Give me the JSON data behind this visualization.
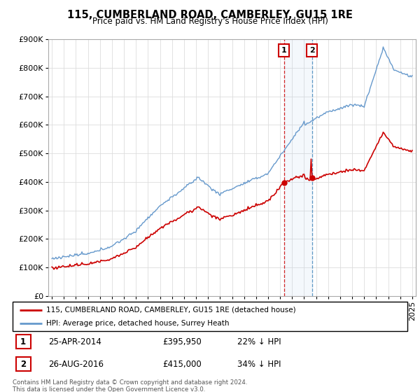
{
  "title": "115, CUMBERLAND ROAD, CAMBERLEY, GU15 1RE",
  "subtitle": "Price paid vs. HM Land Registry's House Price Index (HPI)",
  "legend_line1": "115, CUMBERLAND ROAD, CAMBERLEY, GU15 1RE (detached house)",
  "legend_line2": "HPI: Average price, detached house, Surrey Heath",
  "footer": "Contains HM Land Registry data © Crown copyright and database right 2024.\nThis data is licensed under the Open Government Licence v3.0.",
  "transactions": [
    {
      "num": 1,
      "date": "25-APR-2014",
      "price": "£395,950",
      "hpi": "22% ↓ HPI"
    },
    {
      "num": 2,
      "date": "26-AUG-2016",
      "price": "£415,000",
      "hpi": "34% ↓ HPI"
    }
  ],
  "sale1_year": 2014.32,
  "sale1_price": 395950,
  "sale2_year": 2016.65,
  "sale2_price": 415000,
  "red_color": "#cc0000",
  "blue_color": "#6699cc",
  "ylim": [
    0,
    900000
  ],
  "yticks": [
    0,
    100000,
    200000,
    300000,
    400000,
    500000,
    600000,
    700000,
    800000,
    900000
  ],
  "xstart": 1995,
  "xend": 2025
}
